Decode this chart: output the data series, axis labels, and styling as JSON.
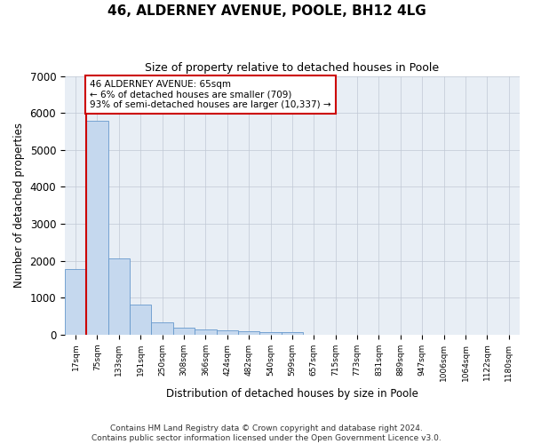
{
  "title": "46, ALDERNEY AVENUE, POOLE, BH12 4LG",
  "subtitle": "Size of property relative to detached houses in Poole",
  "xlabel": "Distribution of detached houses by size in Poole",
  "ylabel": "Number of detached properties",
  "bar_color": "#c5d8ee",
  "bar_edge_color": "#6699cc",
  "background_color": "#e8eef5",
  "grid_color": "#c0c8d4",
  "annotation_box_color": "#cc0000",
  "annotation_line1": "46 ALDERNEY AVENUE: 65sqm",
  "annotation_line2": "← 6% of detached houses are smaller (709)",
  "annotation_line3": "93% of semi-detached houses are larger (10,337) →",
  "marker_line_color": "#cc0000",
  "categories": [
    "17sqm",
    "75sqm",
    "133sqm",
    "191sqm",
    "250sqm",
    "308sqm",
    "366sqm",
    "424sqm",
    "482sqm",
    "540sqm",
    "599sqm",
    "657sqm",
    "715sqm",
    "773sqm",
    "831sqm",
    "889sqm",
    "947sqm",
    "1006sqm",
    "1064sqm",
    "1122sqm",
    "1180sqm"
  ],
  "values": [
    1780,
    5780,
    2060,
    820,
    340,
    190,
    130,
    115,
    95,
    70,
    65,
    0,
    0,
    0,
    0,
    0,
    0,
    0,
    0,
    0,
    0
  ],
  "ylim": [
    0,
    7000
  ],
  "yticks": [
    0,
    1000,
    2000,
    3000,
    4000,
    5000,
    6000,
    7000
  ],
  "footnote1": "Contains HM Land Registry data © Crown copyright and database right 2024.",
  "footnote2": "Contains public sector information licensed under the Open Government Licence v3.0.",
  "figsize": [
    6.0,
    5.0
  ],
  "dpi": 100
}
